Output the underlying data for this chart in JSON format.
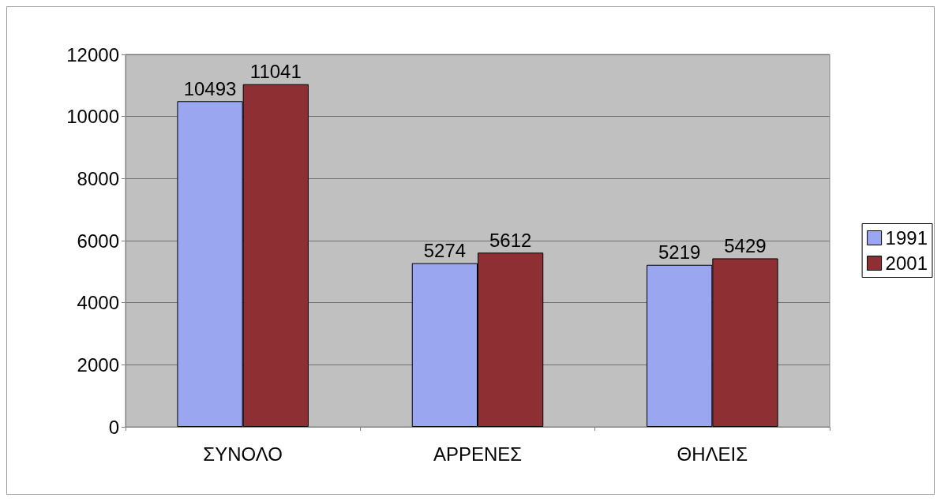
{
  "chart_data": {
    "type": "bar",
    "categories": [
      "ΣΥΝΟΛΟ",
      "ΑΡΡΕΝΕΣ",
      "ΘΗΛΕΙΣ"
    ],
    "series": [
      {
        "name": "1991",
        "color": "#9aa6f0",
        "values": [
          10493,
          5274,
          5219
        ]
      },
      {
        "name": "2001",
        "color": "#8e2f33",
        "values": [
          11041,
          5612,
          5429
        ]
      }
    ],
    "ylim": [
      0,
      12000
    ],
    "yticks": [
      0,
      2000,
      4000,
      6000,
      8000,
      10000,
      12000
    ],
    "grid": "y",
    "legend": "right",
    "data_labels": true
  }
}
